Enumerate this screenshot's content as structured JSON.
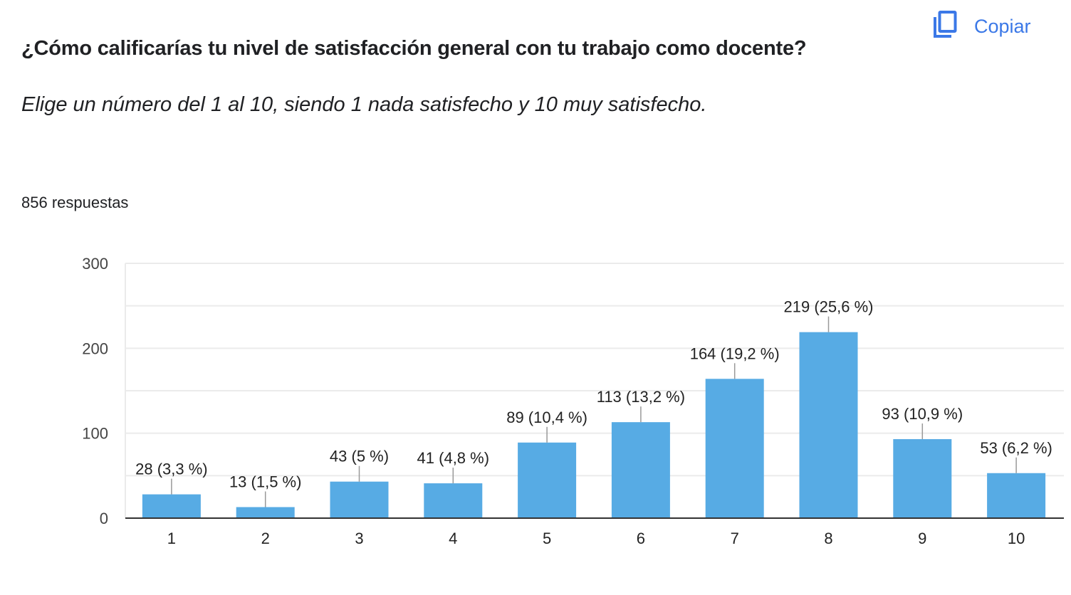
{
  "header": {
    "title": "¿Cómo calificarías tu nivel de satisfacción general con tu trabajo como docente?",
    "subtitle": "Elige un número del 1 al 10, siendo 1 nada satisfecho y 10 muy satisfecho.",
    "responses": "856 respuestas",
    "copy_label": "Copiar",
    "copy_icon": "copy-icon"
  },
  "colors": {
    "bar": "#57abe4",
    "accent": "#3b78e7",
    "grid": "#ebebeb",
    "axis": "#333333"
  },
  "chart_data": {
    "type": "bar",
    "title": "",
    "xlabel": "",
    "ylabel": "",
    "ylim": [
      0,
      300
    ],
    "yticks": [
      0,
      100,
      200,
      300
    ],
    "grid": true,
    "categories": [
      "1",
      "2",
      "3",
      "4",
      "5",
      "6",
      "7",
      "8",
      "9",
      "10"
    ],
    "values": [
      28,
      13,
      43,
      41,
      89,
      113,
      164,
      219,
      93,
      53
    ],
    "labels": [
      "28 (3,3 %)",
      "13 (1,5 %)",
      "43 (5 %)",
      "41 (4,8 %)",
      "89 (10,4 %)",
      "113 (13,2 %)",
      "164 (19,2 %)",
      "219 (25,6 %)",
      "93 (10,9 %)",
      "53 (6,2 %)"
    ]
  }
}
